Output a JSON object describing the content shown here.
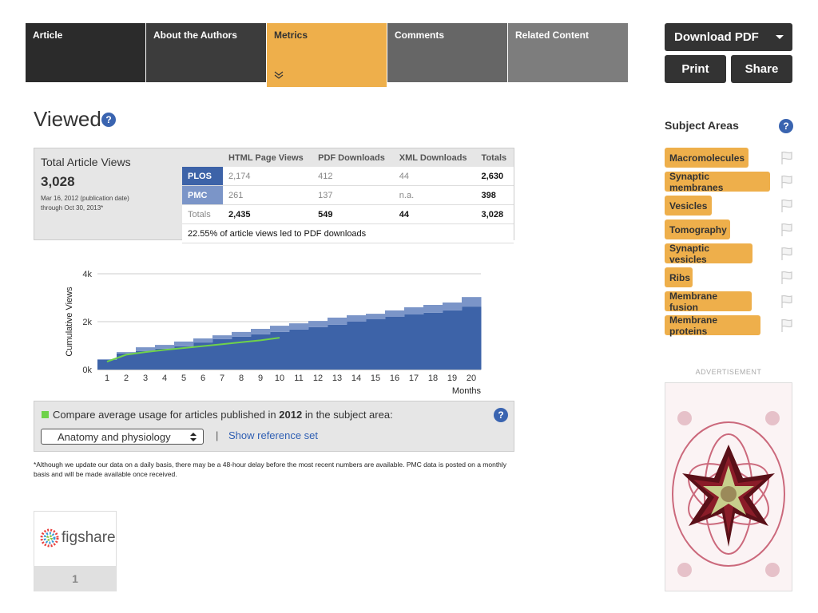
{
  "tabs": [
    "Article",
    "About the Authors",
    "Metrics",
    "Comments",
    "Related Content"
  ],
  "actions": {
    "download": "Download PDF",
    "print": "Print",
    "share": "Share"
  },
  "heading": "Viewed",
  "help": "?",
  "summary": {
    "title": "Total Article Views",
    "total": "3,028",
    "dates": "Mar 16, 2012 (publication date)",
    "through": "through Oct 30, 2013*"
  },
  "table": {
    "header": [
      "HTML Page Views",
      "PDF Downloads",
      "XML Downloads",
      "Totals"
    ],
    "rows": [
      [
        "PLOS",
        "2,174",
        "412",
        "44",
        "2,630"
      ],
      [
        "PMC",
        "261",
        "137",
        "n.a.",
        "398"
      ],
      [
        "Totals",
        "2,435",
        "549",
        "44",
        "3,028"
      ]
    ],
    "note": "22.55% of article views led to PDF downloads"
  },
  "chart_data": {
    "type": "bar",
    "stacked": true,
    "x_label": "Months",
    "y_label": "Cumulative Views",
    "categories": [
      1,
      2,
      3,
      4,
      5,
      6,
      7,
      8,
      9,
      10,
      11,
      12,
      13,
      14,
      15,
      16,
      17,
      18,
      19,
      20
    ],
    "series": [
      {
        "color": "#3d63a8",
        "values": [
          400,
          670,
          770,
          870,
          970,
          1130,
          1270,
          1370,
          1470,
          1570,
          1670,
          1770,
          1870,
          2000,
          2100,
          2200,
          2300,
          2370,
          2470,
          2630
        ]
      },
      {
        "color": "#7b95c8",
        "values": [
          30,
          60,
          160,
          160,
          200,
          170,
          160,
          200,
          230,
          260,
          260,
          260,
          300,
          270,
          230,
          270,
          300,
          330,
          330,
          398
        ]
      },
      {
        "type": "line",
        "color": "#6fd24a",
        "values": [
          330,
          620,
          730,
          820,
          900,
          980,
          1060,
          1140,
          1220,
          1330,
          null,
          null,
          null,
          null,
          null,
          null,
          null,
          null,
          null,
          null
        ]
      }
    ],
    "ylim": [
      0,
      4000
    ],
    "yticks": [
      {
        "value": 0,
        "label": "0k"
      },
      {
        "value": 2000,
        "label": "2k"
      },
      {
        "value": 4000,
        "label": "4k"
      }
    ],
    "grid": true
  },
  "compare": {
    "before": "Compare average usage for articles published in",
    "year": "2012",
    "after": "in the subject area:",
    "select": "Anatomy and physiology",
    "separator": "|",
    "link": "Show reference set"
  },
  "footnote": "*Although we update our data on a daily basis, there may be a 48-hour delay before the most recent numbers are available. PMC data is posted on a monthly basis and will be made available once received.",
  "figshare": {
    "name": "figshare",
    "count": "1"
  },
  "subject_areas": {
    "title": "Subject Areas",
    "tags": [
      "Macromolecules",
      "Synaptic membranes",
      "Vesicles",
      "Tomography",
      "Synaptic vesicles",
      "Ribs",
      "Membrane fusion",
      "Membrane proteins"
    ]
  },
  "advertisement": "ADVERTISEMENT"
}
